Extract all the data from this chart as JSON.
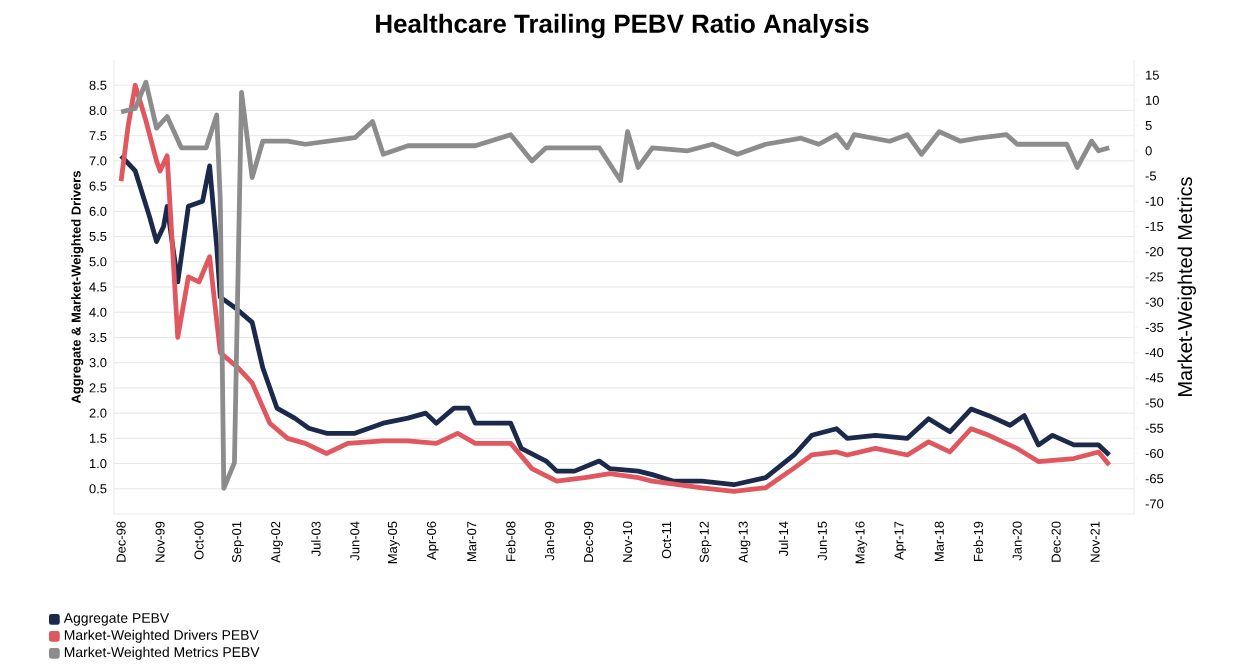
{
  "chart_data": {
    "type": "line",
    "title": "Healthcare Trailing PEBV Ratio Analysis",
    "ylabel": "Aggregate & Market-Weighted Drivers",
    "y2label": "Market-Weighted Metrics",
    "xlim": [
      "1998-10",
      "2022-10"
    ],
    "xticks": [
      {
        "value": "1998-12",
        "label": "Dec-98"
      },
      {
        "value": "1999-11",
        "label": "Nov-99"
      },
      {
        "value": "2000-10",
        "label": "Oct-00"
      },
      {
        "value": "2001-09",
        "label": "Sep-01"
      },
      {
        "value": "2002-08",
        "label": "Aug-02"
      },
      {
        "value": "2003-07",
        "label": "Jul-03"
      },
      {
        "value": "2004-06",
        "label": "Jun-04"
      },
      {
        "value": "2005-05",
        "label": "May-05"
      },
      {
        "value": "2006-04",
        "label": "Apr-06"
      },
      {
        "value": "2007-03",
        "label": "Mar-07"
      },
      {
        "value": "2008-02",
        "label": "Feb-08"
      },
      {
        "value": "2009-01",
        "label": "Jan-09"
      },
      {
        "value": "2009-12",
        "label": "Dec-09"
      },
      {
        "value": "2010-11",
        "label": "Nov-10"
      },
      {
        "value": "2011-10",
        "label": "Oct-11"
      },
      {
        "value": "2012-09",
        "label": "Sep-12"
      },
      {
        "value": "2013-08",
        "label": "Aug-13"
      },
      {
        "value": "2014-07",
        "label": "Jul-14"
      },
      {
        "value": "2015-06",
        "label": "Jun-15"
      },
      {
        "value": "2016-05",
        "label": "May-16"
      },
      {
        "value": "2017-04",
        "label": "Apr-17"
      },
      {
        "value": "2018-03",
        "label": "Mar-18"
      },
      {
        "value": "2019-02",
        "label": "Feb-19"
      },
      {
        "value": "2020-01",
        "label": "Jan-20"
      },
      {
        "value": "2020-12",
        "label": "Dec-20"
      },
      {
        "value": "2021-11",
        "label": "Nov-21"
      }
    ],
    "ylim": [
      0,
      9
    ],
    "yticks": [
      0.5,
      {
        "value": 1,
        "label": "1.0"
      },
      1.5,
      {
        "value": 2,
        "label": "2.0"
      },
      2.5,
      {
        "value": 3,
        "label": "3.0"
      },
      3.5,
      {
        "value": 4,
        "label": "4.0"
      },
      4.5,
      {
        "value": 5,
        "label": "5.0"
      },
      5.5,
      {
        "value": 6,
        "label": "6.0"
      },
      6.5,
      {
        "value": 7,
        "label": "7.0"
      },
      7.5,
      {
        "value": 8,
        "label": "8.0"
      },
      8.5
    ],
    "y2lim": [
      -72,
      18
    ],
    "y2ticks": [
      -70,
      -65,
      -60,
      -55,
      -50,
      -45,
      -40,
      -35,
      -30,
      -25,
      -20,
      -15,
      -10,
      -5,
      0,
      5,
      10,
      15
    ],
    "grid": "y",
    "legend": "bottom left",
    "marker": "none",
    "line_style": "solid",
    "series": [
      {
        "name": "Aggregate PEBV",
        "color": "#1b2a4a",
        "x": [
          "1998-12",
          "1999-04",
          "1999-08",
          "1999-10",
          "1999-12",
          "2000-01",
          "2000-04",
          "2000-07",
          "2000-11",
          "2001-01",
          "2001-03",
          "2001-04",
          "2001-08",
          "2002-01",
          "2002-04",
          "2002-08",
          "2003-01",
          "2003-05",
          "2003-10",
          "2004-06",
          "2005-02",
          "2005-09",
          "2006-02",
          "2006-05",
          "2006-10",
          "2007-02",
          "2007-04",
          "2008-02",
          "2008-05",
          "2008-12",
          "2009-03",
          "2009-08",
          "2010-03",
          "2010-06",
          "2011-02",
          "2011-06",
          "2011-12",
          "2012-08",
          "2013-05",
          "2014-02",
          "2014-10",
          "2015-03",
          "2015-10",
          "2016-01",
          "2016-09",
          "2017-06",
          "2017-12",
          "2018-06",
          "2018-12",
          "2019-05",
          "2019-11",
          "2020-03",
          "2020-07",
          "2020-11",
          "2021-05",
          "2021-12",
          "2022-03"
        ],
        "values": [
          7.1,
          6.8,
          5.9,
          5.4,
          5.7,
          6.1,
          4.6,
          6.1,
          6.2,
          6.9,
          5.3,
          4.3,
          4.1,
          3.8,
          2.9,
          2.1,
          1.9,
          1.7,
          1.6,
          1.6,
          1.8,
          1.9,
          2.0,
          1.8,
          2.1,
          2.1,
          1.8,
          1.8,
          1.3,
          1.05,
          0.85,
          0.85,
          1.05,
          0.9,
          0.85,
          0.78,
          0.65,
          0.65,
          0.58,
          0.72,
          1.17,
          1.56,
          1.69,
          1.5,
          1.56,
          1.5,
          1.89,
          1.63,
          2.08,
          1.95,
          1.76,
          1.95,
          1.37,
          1.56,
          1.37,
          1.37,
          1.17
        ]
      },
      {
        "name": "Market-Weighted Drivers PEBV",
        "color": "#e0575f",
        "x": [
          "1998-12",
          "1999-02",
          "1999-04",
          "1999-07",
          "1999-10",
          "1999-11",
          "2000-01",
          "2000-04",
          "2000-07",
          "2000-10",
          "2001-01",
          "2001-04",
          "2001-09",
          "2002-01",
          "2002-06",
          "2002-11",
          "2003-04",
          "2003-10",
          "2004-04",
          "2005-02",
          "2005-09",
          "2006-05",
          "2006-11",
          "2007-04",
          "2008-02",
          "2008-08",
          "2009-03",
          "2009-11",
          "2010-06",
          "2011-02",
          "2011-06",
          "2012-08",
          "2013-05",
          "2014-02",
          "2014-10",
          "2015-03",
          "2015-10",
          "2016-01",
          "2016-09",
          "2017-06",
          "2017-12",
          "2018-06",
          "2018-12",
          "2019-05",
          "2020-01",
          "2020-07",
          "2021-05",
          "2021-12",
          "2022-03"
        ],
        "values": [
          6.6,
          7.7,
          8.5,
          7.8,
          7.0,
          6.8,
          7.1,
          3.5,
          4.7,
          4.6,
          5.1,
          3.2,
          2.9,
          2.6,
          1.8,
          1.5,
          1.4,
          1.2,
          1.4,
          1.45,
          1.45,
          1.4,
          1.6,
          1.4,
          1.4,
          0.9,
          0.65,
          0.72,
          0.8,
          0.72,
          0.65,
          0.52,
          0.45,
          0.52,
          0.91,
          1.17,
          1.23,
          1.17,
          1.3,
          1.17,
          1.43,
          1.23,
          1.69,
          1.56,
          1.3,
          1.04,
          1.1,
          1.23,
          0.97
        ]
      },
      {
        "name": "Market-Weighted Metrics PEBV",
        "color": "#8c8c8c",
        "axis": "y2",
        "x": [
          "1998-12",
          "1999-04",
          "1999-07",
          "1999-10",
          "2000-01",
          "2000-05",
          "2000-12",
          "2001-03",
          "2001-04",
          "2001-05",
          "2001-08",
          "2001-10",
          "2002-01",
          "2002-04",
          "2002-11",
          "2003-04",
          "2004-06",
          "2004-11",
          "2005-02",
          "2005-09",
          "2007-04",
          "2008-02",
          "2008-08",
          "2008-12",
          "2010-03",
          "2010-09",
          "2010-11",
          "2011-02",
          "2011-06",
          "2012-04",
          "2012-11",
          "2013-06",
          "2014-02",
          "2014-12",
          "2015-05",
          "2015-10",
          "2016-01",
          "2016-03",
          "2017-01",
          "2017-06",
          "2017-10",
          "2018-03",
          "2018-09",
          "2019-02",
          "2019-10",
          "2020-01",
          "2021-03",
          "2021-06",
          "2021-10",
          "2021-12",
          "2022-03"
        ],
        "values": [
          7.7,
          8.4,
          13.6,
          4.5,
          6.8,
          0.6,
          0.6,
          7.1,
          -9.8,
          -66.9,
          -61.8,
          11.6,
          -5.3,
          1.9,
          1.9,
          1.3,
          2.6,
          5.8,
          -0.7,
          1.0,
          1.0,
          3.2,
          -2.0,
          0.6,
          0.6,
          -5.9,
          3.8,
          -3.3,
          0.6,
          0,
          1.3,
          -0.7,
          1.3,
          2.5,
          1.3,
          3.2,
          0.6,
          3.2,
          1.9,
          3.2,
          -0.7,
          3.8,
          1.9,
          2.5,
          3.2,
          1.3,
          1.3,
          -3.3,
          1.9,
          0,
          0.6
        ]
      }
    ]
  }
}
